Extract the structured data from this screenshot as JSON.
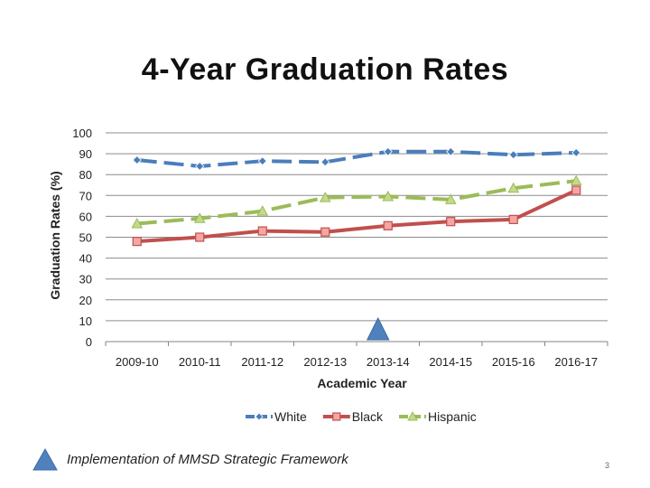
{
  "slide": {
    "title": "4-Year Graduation Rates",
    "footnote": "Implementation of MMSD Strategic Framework",
    "page_number": "3"
  },
  "chart_data": {
    "type": "line",
    "title": "4-Year Graduation Rates",
    "xlabel": "Academic Year",
    "ylabel": "Graduation Rates (%)",
    "ylim": [
      0,
      100
    ],
    "y_ticks": [
      0,
      10,
      20,
      30,
      40,
      50,
      60,
      70,
      80,
      90,
      100
    ],
    "categories": [
      "2009-10",
      "2010-11",
      "2011-12",
      "2012-13",
      "2013-14",
      "2014-15",
      "2015-16",
      "2016-17"
    ],
    "grid": true,
    "legend_position": "bottom",
    "series": [
      {
        "name": "White",
        "values": [
          87,
          84,
          86.5,
          86,
          91,
          91,
          89.5,
          90.5
        ],
        "color": "#4a7ebb",
        "line_style": "dashed",
        "marker": "diamond"
      },
      {
        "name": "Black",
        "values": [
          48,
          50,
          53,
          52.5,
          55.5,
          57.5,
          58.5,
          72.5
        ],
        "color": "#c0504d",
        "line_style": "solid",
        "marker": "square"
      },
      {
        "name": "Hispanic",
        "values": [
          56.5,
          59,
          62.5,
          69,
          69.5,
          68,
          73.5,
          77
        ],
        "color": "#9bbb59",
        "line_style": "dashed",
        "marker": "triangle"
      }
    ],
    "annotation": {
      "category": "2013-14",
      "label": "Implementation of MMSD Strategic Framework",
      "marker": "triangle",
      "color": "#4f81bd"
    }
  }
}
